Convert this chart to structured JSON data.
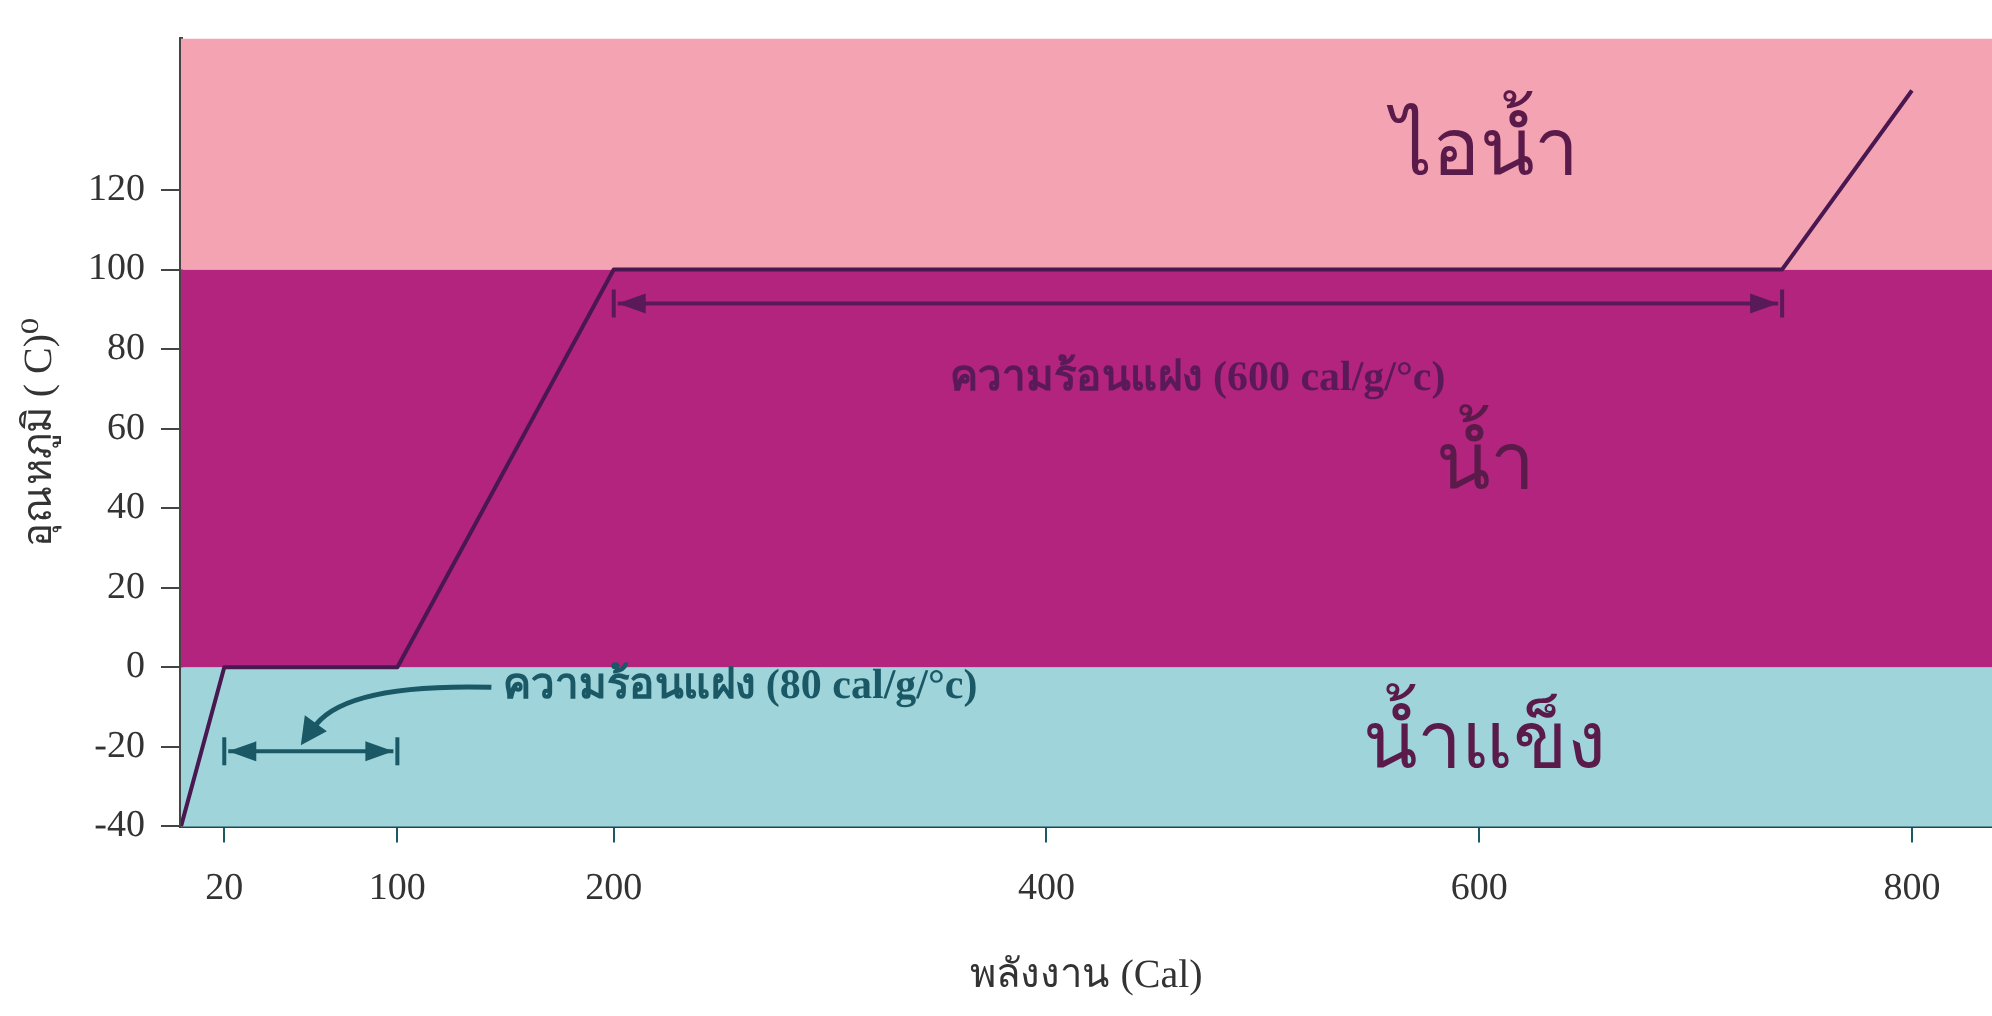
{
  "chart_data": {
    "type": "line",
    "xlabel": "พลังงาน (Cal)",
    "ylabel": "อุณหภูมิ ( C)⁰",
    "series": [
      {
        "color": "#4a1850",
        "x": [
          0,
          20,
          100,
          200,
          740,
          800
        ],
        "values": [
          -40,
          0,
          0,
          100,
          100,
          145
        ]
      }
    ],
    "xlim": [
      0,
      837
    ],
    "ylim": [
      -40,
      158
    ],
    "xticks": [
      20,
      100,
      200,
      400,
      600,
      800
    ],
    "yticks": [
      -40,
      -20,
      0,
      20,
      40,
      60,
      80,
      100,
      120
    ],
    "bands": [
      {
        "axis": "y",
        "from": -40,
        "to": 0,
        "label": "น้ำแข็ง",
        "color": "#9fd4da"
      },
      {
        "axis": "y",
        "from": 0,
        "to": 100,
        "label": "น้ำ",
        "color": "#b2247e"
      },
      {
        "axis": "y",
        "from": 100,
        "to": 158,
        "label": "ไอน้ำ",
        "color": "#f4a3b2"
      }
    ],
    "annotations": [
      "ความร้อนแฝง (600 cal/g/°c)",
      "ความร้อนแฝง (80 cal/g/°c)"
    ],
    "grid": false,
    "legend": false,
    "marker": "none",
    "line_style": "solid"
  }
}
